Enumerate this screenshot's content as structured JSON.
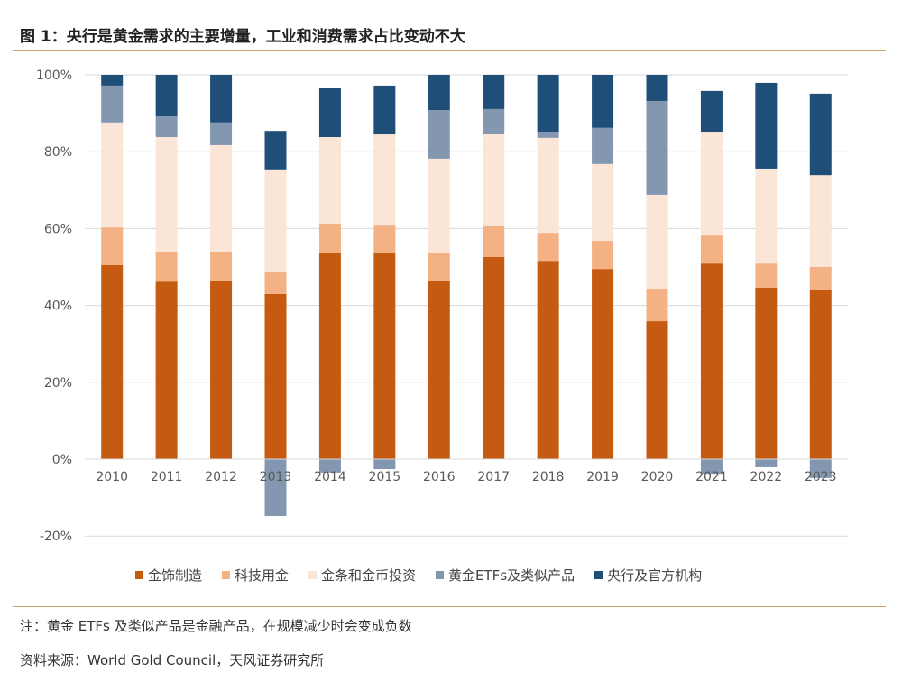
{
  "title": "图 1：央行是黄金需求的主要增量，工业和消费需求占比变动不大",
  "note": "注：黄金 ETFs 及类似产品是金融产品，在规模减少时会变成负数",
  "source": "资料来源：World Gold Council，天风证券研究所",
  "chart_data": {
    "type": "bar",
    "stacked": true,
    "categories": [
      "2010",
      "2011",
      "2012",
      "2013",
      "2014",
      "2015",
      "2016",
      "2017",
      "2018",
      "2019",
      "2020",
      "2021",
      "2022",
      "2023"
    ],
    "ylim": [
      -20,
      100
    ],
    "yticks": [
      -20,
      0,
      20,
      40,
      60,
      80,
      100
    ],
    "ytick_labels": [
      "-20%",
      "0%",
      "20%",
      "40%",
      "60%",
      "80%",
      "100%"
    ],
    "grid": true,
    "legend_position": "bottom",
    "series": [
      {
        "name": "金饰制造",
        "color": "#C55A11",
        "values": [
          50.5,
          46.2,
          46.5,
          43.0,
          53.8,
          53.8,
          46.5,
          52.6,
          51.6,
          49.5,
          35.9,
          50.9,
          44.6,
          43.9
        ]
      },
      {
        "name": "科技用金",
        "color": "#F4B183",
        "values": [
          9.8,
          7.8,
          7.5,
          5.6,
          7.5,
          7.2,
          7.3,
          8.0,
          7.3,
          7.3,
          8.5,
          7.3,
          6.3,
          6.1
        ]
      },
      {
        "name": "金条和金币投资",
        "color": "#FBE5D6",
        "values": [
          27.3,
          29.8,
          27.7,
          26.8,
          22.5,
          23.5,
          24.4,
          24.1,
          24.7,
          20.0,
          24.4,
          27.0,
          24.7,
          23.9
        ]
      },
      {
        "name": "黄金ETFs及类似产品",
        "color": "#8497B0",
        "values": [
          9.6,
          5.4,
          5.9,
          -14.8,
          -3.5,
          -2.6,
          12.6,
          6.4,
          1.6,
          9.4,
          24.4,
          -3.8,
          -2.1,
          -4.9
        ]
      },
      {
        "name": "央行及官方机构",
        "color": "#1F4E79",
        "values": [
          2.8,
          10.8,
          12.4,
          10.0,
          12.9,
          12.7,
          9.2,
          8.9,
          14.8,
          13.8,
          6.8,
          10.6,
          22.3,
          21.2
        ]
      }
    ]
  }
}
